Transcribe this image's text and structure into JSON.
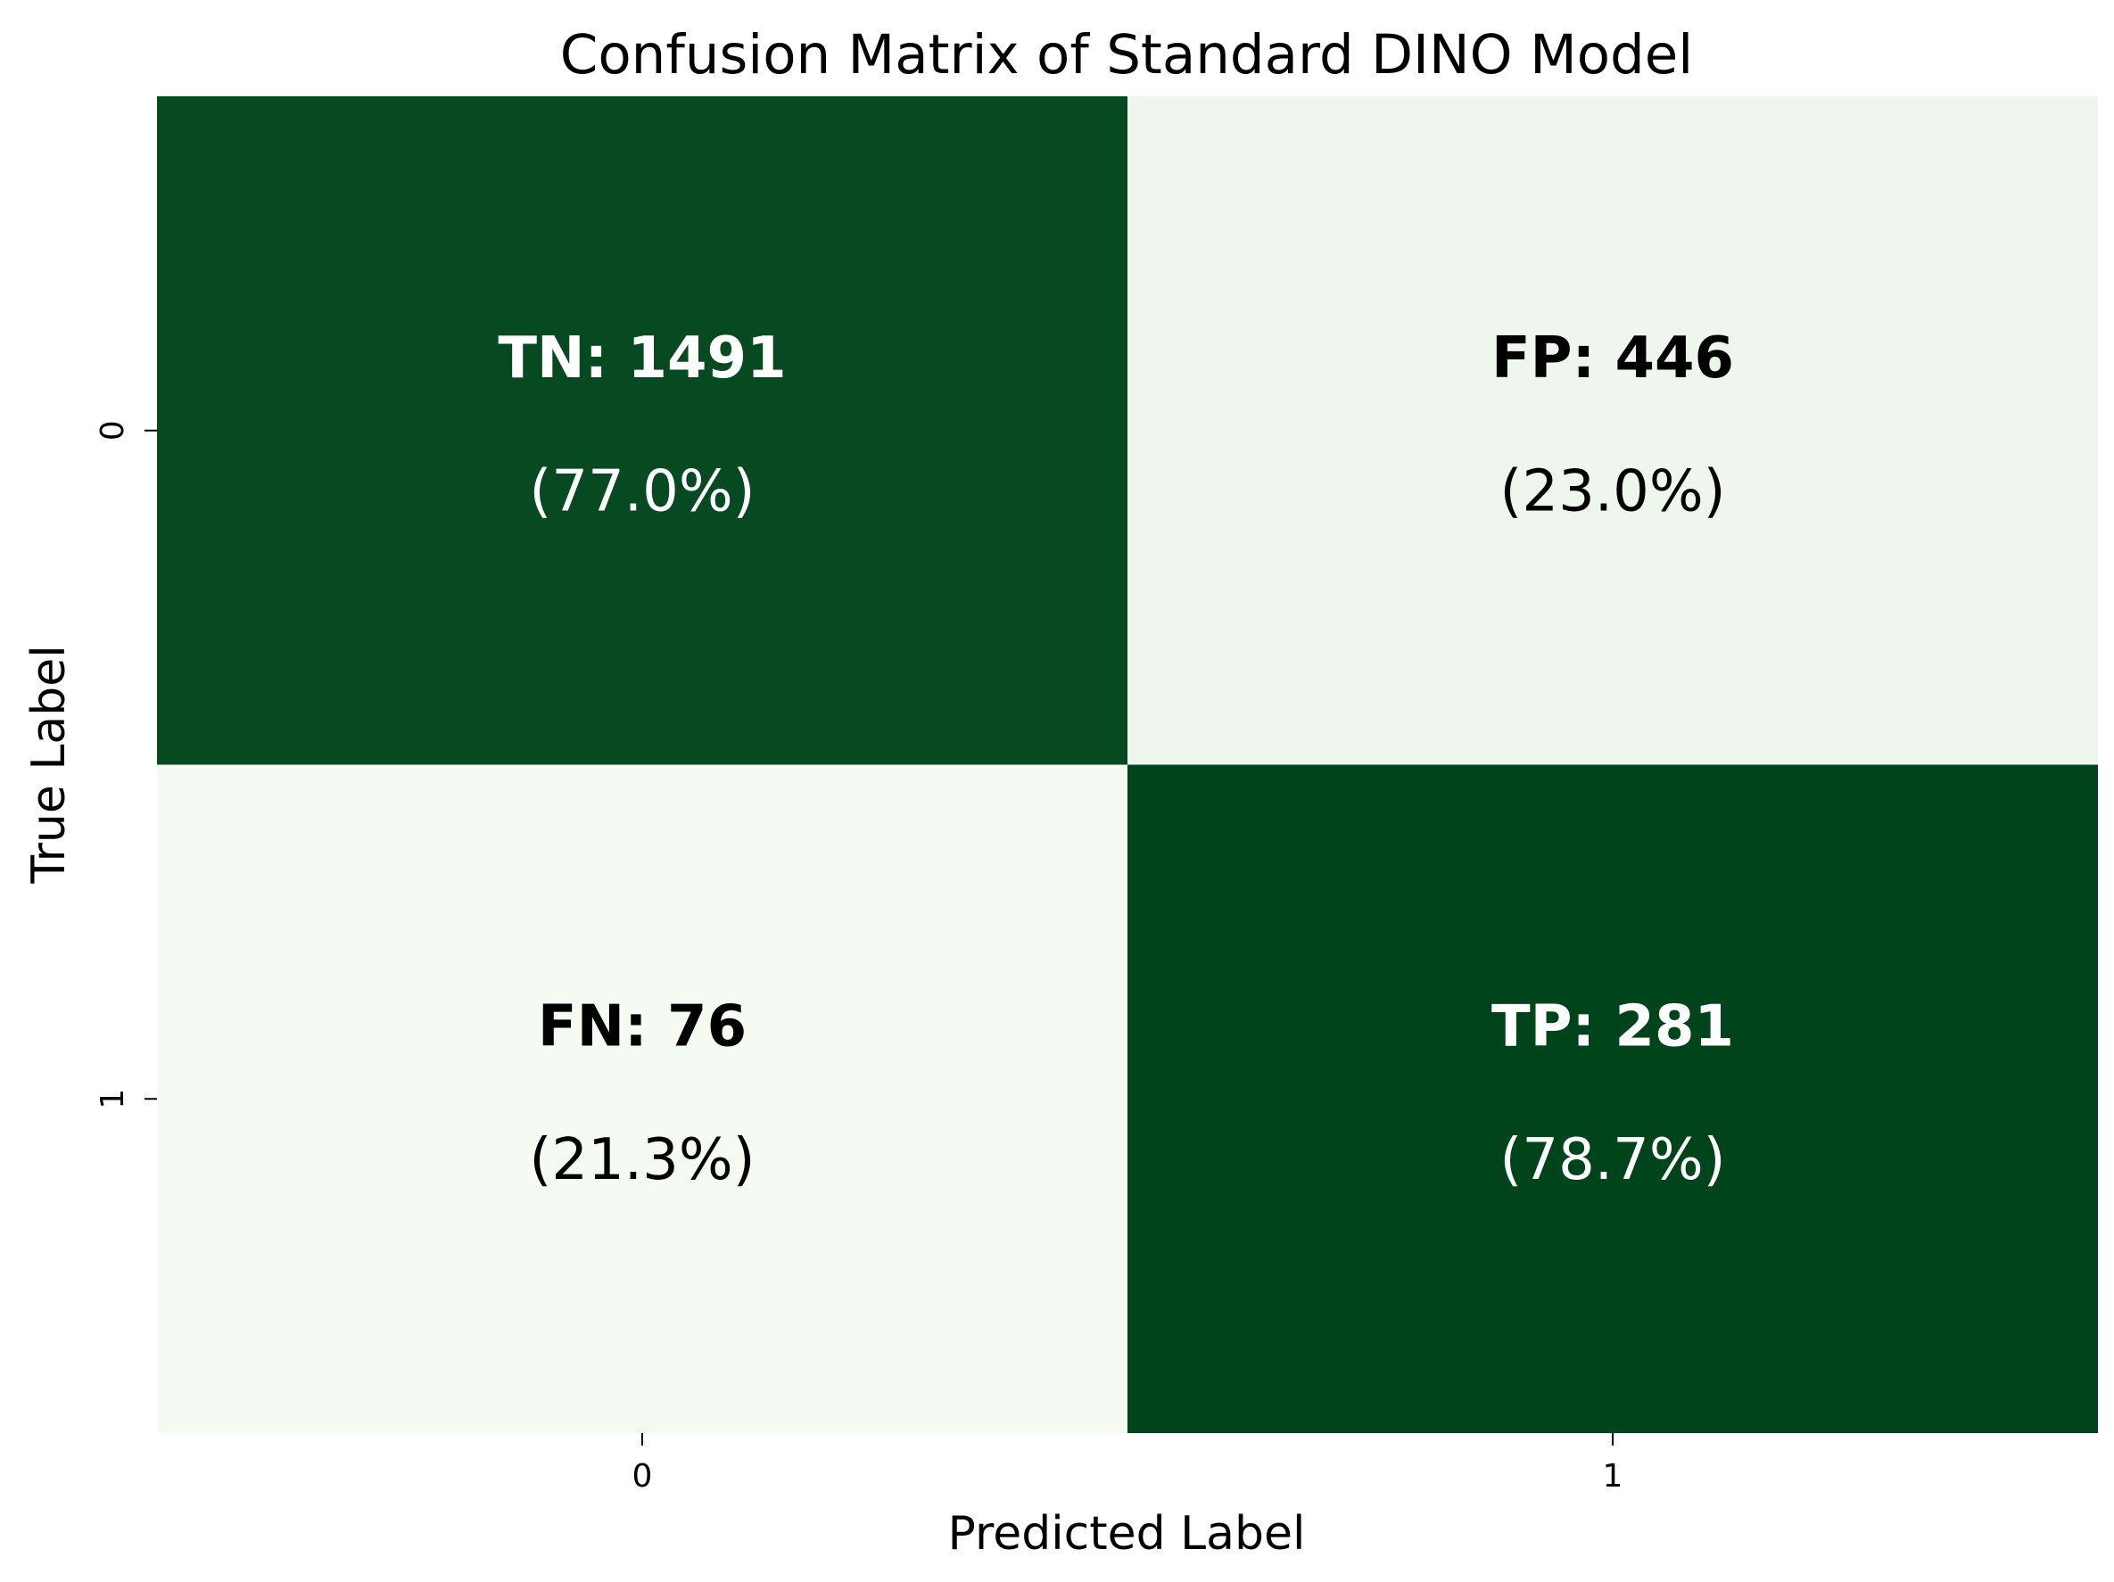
{
  "chart_data": {
    "type": "heatmap",
    "title": "Confusion Matrix of Standard DINO Model",
    "xlabel": "Predicted Label",
    "ylabel": "True Label",
    "x_categories": [
      "0",
      "1"
    ],
    "y_categories": [
      "0",
      "1"
    ],
    "values": [
      [
        1491,
        446
      ],
      [
        76,
        281
      ]
    ],
    "row_percentages": [
      [
        77.0,
        23.0
      ],
      [
        21.3,
        78.7
      ]
    ],
    "cell_labels": [
      [
        "TN: 1491",
        "FP: 446"
      ],
      [
        "FN: 76",
        "TP: 281"
      ]
    ],
    "cell_sublabels": [
      [
        "(77.0%)",
        "(23.0%)"
      ],
      [
        "(21.3%)",
        "(78.7%)"
      ]
    ],
    "colorscale": {
      "low": "#f5fbf3",
      "high": "#00441b"
    },
    "text_colors": {
      "on_dark": "#ffffff",
      "on_light": "#000000"
    },
    "grid": false,
    "legend": "none"
  }
}
